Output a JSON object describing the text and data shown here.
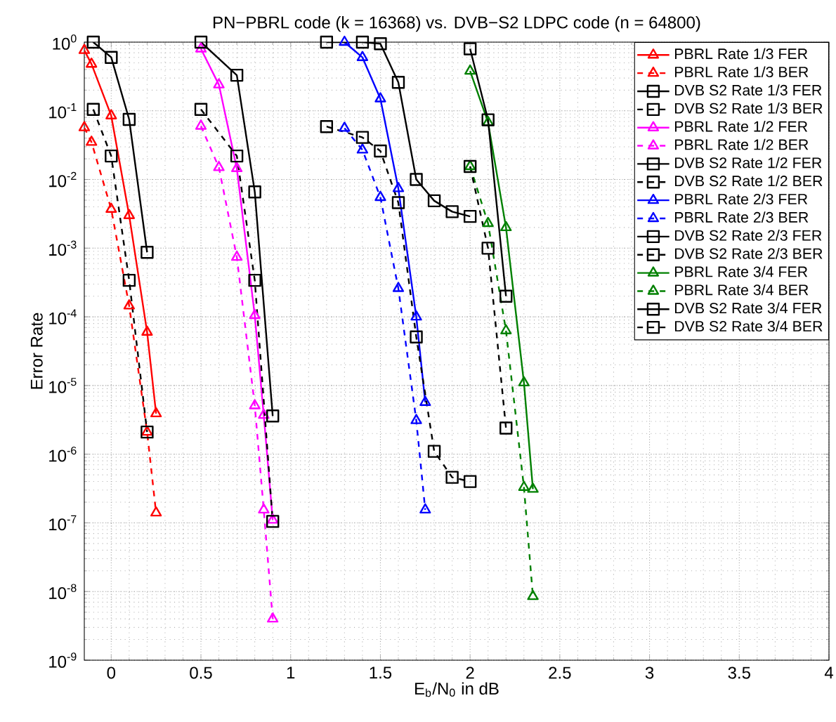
{
  "chart_data": {
    "type": "line",
    "title": "PN−PBRL code (k = 16368) vs. DVB−S2 LDPC code (n = 64800)",
    "xlabel": "E$_{b}$/N$_{0}$ in dB",
    "ylabel": "Error Rate",
    "log": "y",
    "grid": true,
    "legend": "top right",
    "xlim": [
      -0.15,
      4
    ],
    "ylim": [
      1e-09,
      1
    ],
    "xticks": [
      0,
      0.5,
      1,
      1.5,
      2,
      2.5,
      3,
      3.5,
      4
    ],
    "yticks": [
      {
        "value": 1e-09,
        "label": "10$^{-9}$"
      },
      {
        "value": 1e-08,
        "label": "10$^{-8}$"
      },
      {
        "value": 1e-07,
        "label": "10$^{-7}$"
      },
      {
        "value": 1e-06,
        "label": "10$^{-6}$"
      },
      {
        "value": 1e-05,
        "label": "10$^{-5}$"
      },
      {
        "value": 0.0001,
        "label": "10$^{-4}$"
      },
      {
        "value": 0.001,
        "label": "10$^{-3}$"
      },
      {
        "value": 0.01,
        "label": "10$^{-2}$"
      },
      {
        "value": 0.1,
        "label": "10$^{-1}$"
      },
      {
        "value": 1,
        "label": "10$^{0}$"
      }
    ],
    "series": [
      {
        "name": "PBRL Rate 1/3 FER",
        "color": "#ff0000",
        "marker": "triangle",
        "line_style": "solid",
        "x": [
          -0.15,
          -0.11,
          0,
          0.1,
          0.2,
          0.25
        ],
        "values": [
          0.76,
          0.48,
          0.085,
          0.003,
          6e-05,
          3.9e-06
        ]
      },
      {
        "name": "PBRL Rate 1/3 BER",
        "color": "#ff0000",
        "marker": "triangle",
        "line_style": "dashed",
        "x": [
          -0.15,
          -0.11,
          0,
          0.1,
          0.2,
          0.25
        ],
        "values": [
          0.057,
          0.035,
          0.0037,
          0.000145,
          2.1e-06,
          1.4e-07
        ]
      },
      {
        "name": "DVB S2 Rate 1/3 FER",
        "color": "#000000",
        "marker": "square",
        "line_style": "solid",
        "x": [
          -0.1,
          0,
          0.1,
          0.2
        ],
        "values": [
          1,
          0.6,
          0.075,
          0.00087
        ]
      },
      {
        "name": "DVB S2 Rate 1/3 BER",
        "color": "#000000",
        "marker": "square",
        "line_style": "dashed",
        "x": [
          -0.1,
          0,
          0.1,
          0.2
        ],
        "values": [
          0.105,
          0.022,
          0.00034,
          2.1e-06
        ]
      },
      {
        "name": "PBRL Rate 1/2 FER",
        "color": "#ff00ff",
        "marker": "triangle",
        "line_style": "solid",
        "x": [
          0.5,
          0.6,
          0.7,
          0.8,
          0.85,
          0.9
        ],
        "values": [
          0.8,
          0.24,
          0.0145,
          0.000105,
          3.7e-06,
          1.1e-07
        ]
      },
      {
        "name": "PBRL Rate 1/2 BER",
        "color": "#ff00ff",
        "marker": "triangle",
        "line_style": "dashed",
        "x": [
          0.5,
          0.6,
          0.7,
          0.8,
          0.85,
          0.9
        ],
        "values": [
          0.06,
          0.015,
          0.00074,
          5.1e-06,
          1.55e-07,
          4e-09
        ]
      },
      {
        "name": "DVB S2 Rate 1/2 FER",
        "color": "#000000",
        "marker": "square",
        "line_style": "solid",
        "x": [
          0.5,
          0.7,
          0.8,
          0.9
        ],
        "values": [
          1,
          0.33,
          0.0066,
          3.6e-06
        ]
      },
      {
        "name": "DVB S2 Rate 1/2 BER",
        "color": "#000000",
        "marker": "square",
        "line_style": "dashed",
        "x": [
          0.5,
          0.7,
          0.8,
          0.9
        ],
        "values": [
          0.105,
          0.022,
          0.00034,
          1.05e-07
        ]
      },
      {
        "name": "PBRL Rate 2/3 FER",
        "color": "#0000ff",
        "marker": "triangle",
        "line_style": "solid",
        "x": [
          1.3,
          1.4,
          1.5,
          1.6,
          1.7,
          1.75
        ],
        "values": [
          1,
          0.6,
          0.15,
          0.0074,
          0.0001,
          5.7e-06
        ]
      },
      {
        "name": "PBRL Rate 2/3 BER",
        "color": "#0000ff",
        "marker": "triangle",
        "line_style": "dashed",
        "x": [
          1.3,
          1.4,
          1.5,
          1.6,
          1.7,
          1.75
        ],
        "values": [
          0.056,
          0.027,
          0.0055,
          0.00026,
          3.1e-06,
          1.55e-07
        ]
      },
      {
        "name": "DVB S2 Rate 2/3 FER",
        "color": "#000000",
        "marker": "square",
        "line_style": "solid",
        "x": [
          1.2,
          1.4,
          1.5,
          1.6,
          1.7,
          1.8,
          1.9,
          2.0
        ],
        "values": [
          1,
          1,
          0.95,
          0.26,
          0.01,
          0.0049,
          0.0034,
          0.0029
        ]
      },
      {
        "name": "DVB S2 Rate 2/3 BER",
        "color": "#000000",
        "marker": "square",
        "line_style": "dashed",
        "x": [
          1.2,
          1.4,
          1.5,
          1.6,
          1.7,
          1.8,
          1.9,
          2.0
        ],
        "values": [
          0.059,
          0.041,
          0.026,
          0.0046,
          5.1e-05,
          1.1e-06,
          4.6e-07,
          4e-07
        ]
      },
      {
        "name": "PBRL Rate 3/4 FER",
        "color": "#008000",
        "marker": "triangle",
        "line_style": "solid",
        "x": [
          2.0,
          2.1,
          2.2,
          2.3,
          2.35
        ],
        "values": [
          0.38,
          0.068,
          0.002,
          1.1e-05,
          3.1e-07
        ]
      },
      {
        "name": "PBRL Rate 3/4 BER",
        "color": "#008000",
        "marker": "triangle",
        "line_style": "dashed",
        "x": [
          2.0,
          2.1,
          2.2,
          2.3,
          2.35
        ],
        "values": [
          0.0155,
          0.0023,
          6.3e-05,
          3.3e-07,
          8.5e-09
        ]
      },
      {
        "name": "DVB S2 Rate 3/4 FER",
        "color": "#000000",
        "marker": "square",
        "line_style": "solid",
        "x": [
          2.0,
          2.1,
          2.2
        ],
        "values": [
          0.8,
          0.074,
          0.0002
        ]
      },
      {
        "name": "DVB S2 Rate 3/4 BER",
        "color": "#000000",
        "marker": "square",
        "line_style": "dashed",
        "x": [
          2.0,
          2.1,
          2.2
        ],
        "values": [
          0.0155,
          0.001,
          2.4e-06
        ]
      }
    ]
  }
}
